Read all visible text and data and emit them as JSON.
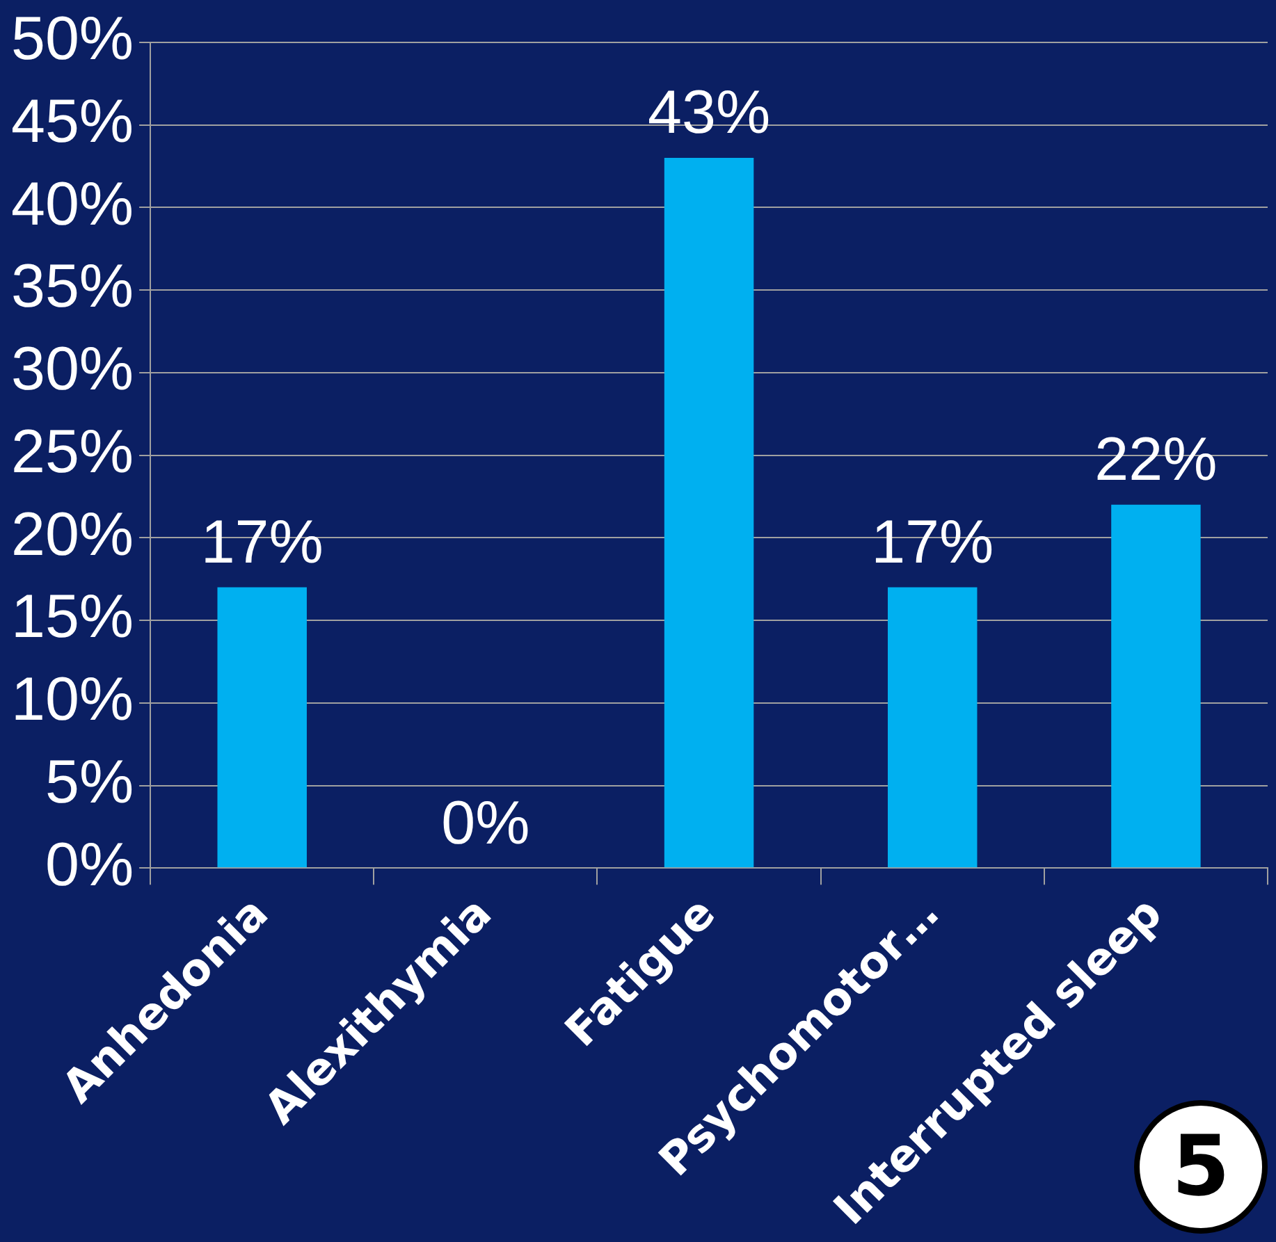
{
  "chart_data": {
    "type": "bar",
    "categories": [
      "Anhedonia",
      "Alexithymia",
      "Fatigue",
      "Psychomotor…",
      "Interrupted sleep"
    ],
    "values": [
      17,
      0,
      43,
      17,
      22
    ],
    "value_labels": [
      "17%",
      "0%",
      "43%",
      "17%",
      "22%"
    ],
    "color": "#00b0f0",
    "ylim": [
      0,
      50
    ],
    "yticks": [
      {
        "value": 0,
        "label": "0%"
      },
      {
        "value": 5,
        "label": "5%"
      },
      {
        "value": 10,
        "label": "10%"
      },
      {
        "value": 15,
        "label": "15%"
      },
      {
        "value": 20,
        "label": "20%"
      },
      {
        "value": 25,
        "label": "25%"
      },
      {
        "value": 30,
        "label": "30%"
      },
      {
        "value": 35,
        "label": "35%"
      },
      {
        "value": 40,
        "label": "40%"
      },
      {
        "value": 45,
        "label": "45%"
      },
      {
        "value": 50,
        "label": "50%"
      }
    ],
    "grid": "y",
    "legend": false,
    "annotations": [
      "5"
    ]
  }
}
